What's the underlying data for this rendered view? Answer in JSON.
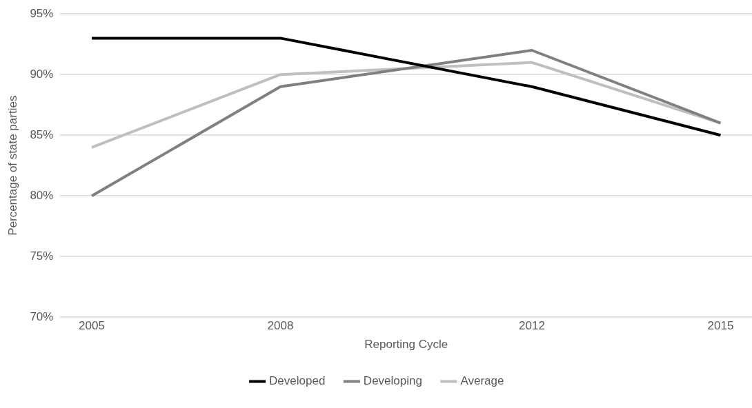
{
  "chart_data": {
    "type": "line",
    "xlabel": "Reporting Cycle",
    "ylabel": "Percentage of state parties",
    "x": [
      2005,
      2008,
      2012,
      2015
    ],
    "series": [
      {
        "name": "Developed",
        "color": "#000000",
        "values": [
          93,
          93,
          89,
          85
        ]
      },
      {
        "name": "Developing",
        "color": "#808080",
        "values": [
          80,
          89,
          92,
          86
        ]
      },
      {
        "name": "Average",
        "color": "#bfbfbf",
        "values": [
          84,
          90,
          91,
          86
        ]
      }
    ],
    "xlim": [
      2004.5,
      2015.5
    ],
    "xticks": [
      2005,
      2008,
      2012,
      2015
    ],
    "ylim": [
      70,
      95
    ],
    "yticks": [
      {
        "value": 70,
        "label": "70%"
      },
      {
        "value": 75,
        "label": "75%"
      },
      {
        "value": 80,
        "label": "80%"
      },
      {
        "value": 85,
        "label": "85%"
      },
      {
        "value": 90,
        "label": "90%"
      },
      {
        "value": 95,
        "label": "95%"
      }
    ],
    "grid": "y",
    "legend": "bottom"
  }
}
